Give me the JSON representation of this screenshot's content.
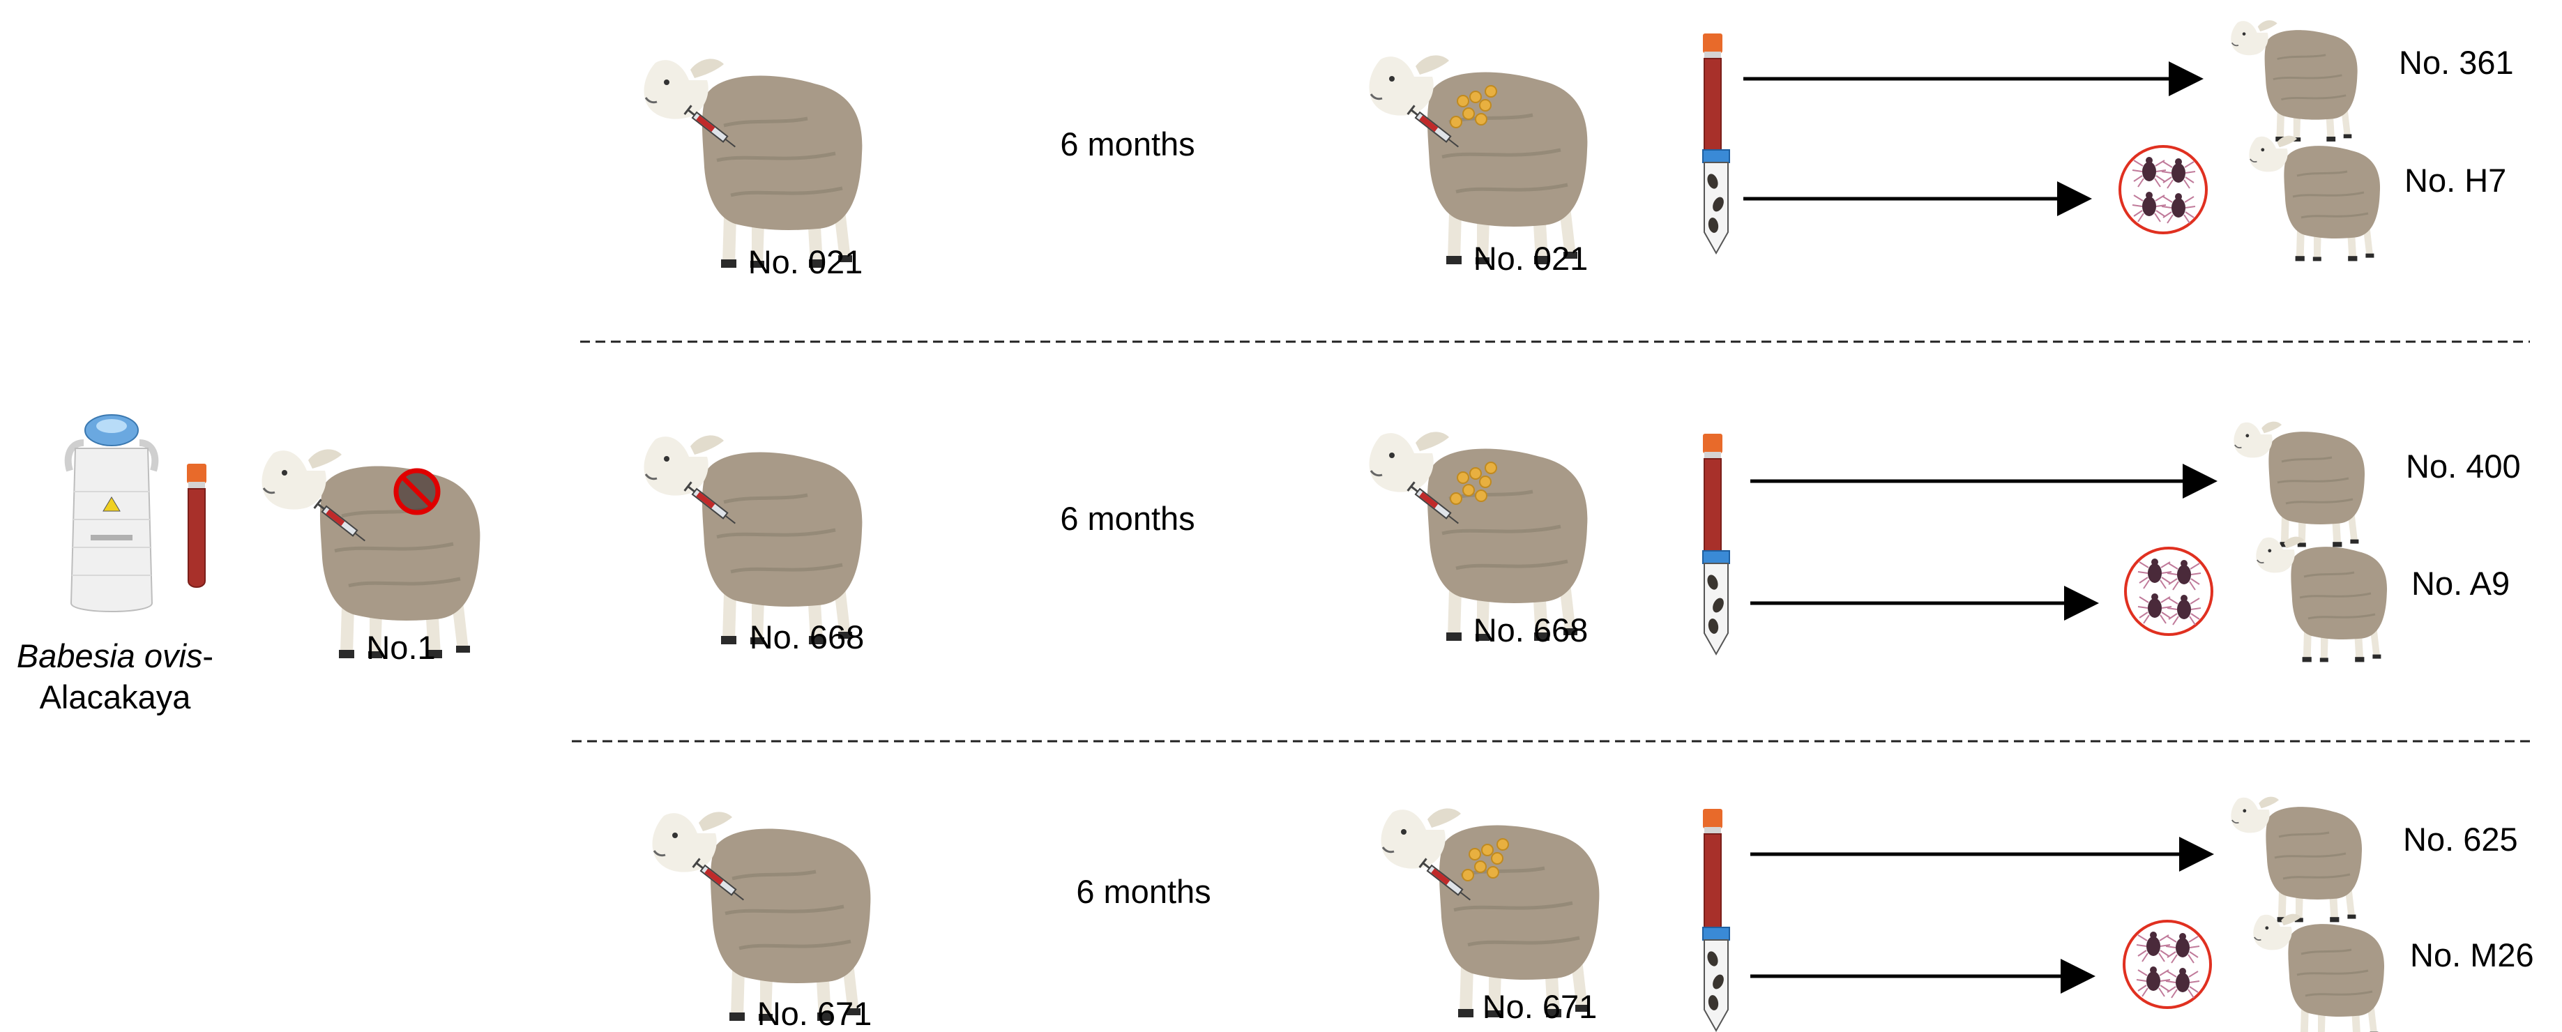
{
  "source": {
    "strain_italic": "Babesia ovis",
    "strain_rest": "-",
    "strain_line2": "Alacakaya",
    "donor_label": "No.1"
  },
  "rows": [
    {
      "first_sheep": "No. 021",
      "interval": "6 months",
      "second_sheep": "No. 021",
      "blood_recipient": "No. 361",
      "tick_recipient": "No. H7"
    },
    {
      "first_sheep": "No. 668",
      "interval": "6 months",
      "second_sheep": "No. 668",
      "blood_recipient": "No. 400",
      "tick_recipient": "No. A9"
    },
    {
      "first_sheep": "No. 671",
      "interval": "6 months",
      "second_sheep": "No. 671",
      "blood_recipient": "No. 625",
      "tick_recipient": "No. M26"
    }
  ],
  "colors": {
    "sheep_body": "#a89a88",
    "sheep_face": "#f2efe6",
    "blood": "#a8302a",
    "cap_orange": "#e86a2a",
    "cap_blue": "#3a8ad6",
    "tick_circle": "#e03020",
    "merozoite": "#e8b040",
    "no_symbol": "#e00000"
  },
  "icons": {
    "nitrogen_tank": "liquid-nitrogen-tank-icon",
    "blood_tube": "blood-tube-icon",
    "tick_tube": "tick-tube-icon",
    "ticks": "ticks-in-circle-icon",
    "sheep": "sheep-icon",
    "syringe": "syringe-icon"
  }
}
